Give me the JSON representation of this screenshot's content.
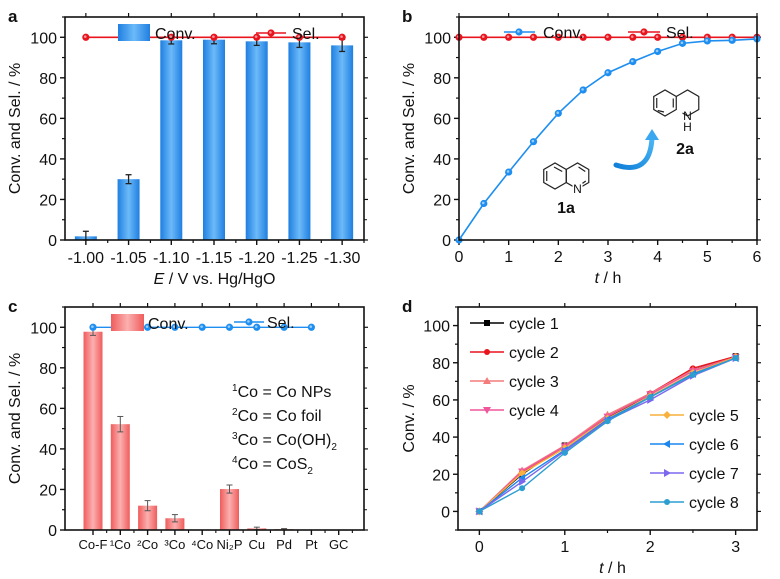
{
  "chart_data": [
    {
      "panel": "a",
      "type": "bar",
      "title": "",
      "xlabel_italic": "E",
      "xlabel_rest": " / V vs. Hg/HgO",
      "ylabel": "Conv. and Sel. / %",
      "ylim": [
        0,
        110
      ],
      "yticks": [
        0,
        20,
        40,
        60,
        80,
        100
      ],
      "categories": [
        "-1.00",
        "-1.05",
        "-1.10",
        "-1.15",
        "-1.20",
        "-1.25",
        "-1.30"
      ],
      "series": [
        {
          "name": "Conv.",
          "kind": "bar",
          "color": "#2f8de4",
          "values": [
            1.8,
            30,
            98.5,
            98.8,
            98,
            97.5,
            96
          ],
          "errors": [
            2.5,
            2.2,
            1.8,
            2,
            2,
            2.5,
            3
          ]
        },
        {
          "name": "Sel.",
          "kind": "line",
          "color": "#e8141e",
          "values": [
            100,
            100,
            100,
            100,
            100,
            100,
            100
          ]
        }
      ],
      "legend": "top"
    },
    {
      "panel": "b",
      "type": "line",
      "xlabel_italic": "t",
      "xlabel_rest": " / h",
      "ylabel": "Conv. and Sel. / %",
      "xlim": [
        0,
        6
      ],
      "ylim": [
        0,
        110
      ],
      "xticks": [
        0,
        1,
        2,
        3,
        4,
        5,
        6
      ],
      "yticks": [
        0,
        20,
        40,
        60,
        80,
        100
      ],
      "x": [
        0,
        0.5,
        1,
        1.5,
        2,
        2.5,
        3,
        3.5,
        4,
        4.5,
        5,
        5.5,
        6
      ],
      "series": [
        {
          "name": "Conv.",
          "color": "#1e8ef0",
          "values": [
            0,
            18,
            33.5,
            48.5,
            62.5,
            74,
            82.5,
            88,
            93,
            97,
            98.2,
            98.5,
            99.2
          ]
        },
        {
          "name": "Sel.",
          "color": "#e8141e",
          "values": [
            100,
            100,
            100,
            100,
            100,
            100,
            100,
            100,
            100,
            100,
            100,
            100,
            100
          ]
        }
      ],
      "annotations": [
        "1a",
        "2a",
        "N",
        "N",
        "H"
      ],
      "legend": "top"
    },
    {
      "panel": "c",
      "type": "bar",
      "xlabel": "",
      "ylabel": "Conv. and Sel. / %",
      "ylim": [
        0,
        110
      ],
      "yticks": [
        0,
        20,
        40,
        60,
        80,
        100
      ],
      "categories": [
        "Co-F",
        "¹Co",
        "²Co",
        "³Co",
        "⁴Co",
        "Ni₂P",
        "Cu",
        "Pd",
        "Pt",
        "GC"
      ],
      "series": [
        {
          "name": "Conv.",
          "kind": "bar",
          "color": "#f26d6d",
          "values": [
            97.8,
            52.2,
            12,
            5.8,
            0.2,
            20.2,
            0.8,
            0.4,
            0.1,
            0
          ],
          "errors": [
            1.8,
            3.8,
            2.5,
            1.8,
            0,
            2,
            0.6,
            0.3,
            0,
            0
          ]
        },
        {
          "name": "Sel.",
          "kind": "line",
          "color": "#1e8ef0",
          "values": [
            100,
            100,
            100,
            100,
            100,
            100,
            100,
            100,
            100,
            null
          ]
        }
      ],
      "notes": [
        {
          "sup": "1",
          "text": "Co = Co NPs"
        },
        {
          "sup": "2",
          "text": "Co = Co foil"
        },
        {
          "sup": "3",
          "text": "Co = Co(OH)",
          "sub": "2"
        },
        {
          "sup": "4",
          "text": "Co = CoS",
          "sub": "2"
        }
      ],
      "legend": "top"
    },
    {
      "panel": "d",
      "type": "line",
      "xlabel_italic": "t",
      "xlabel_rest": " / h",
      "ylabel": "Conv. / %",
      "xlim": [
        -0.25,
        3.25
      ],
      "ylim": [
        -10,
        110
      ],
      "xticks": [
        0,
        1,
        2,
        3
      ],
      "yticks": [
        0,
        20,
        40,
        60,
        80,
        100
      ],
      "x": [
        0,
        0.5,
        1,
        1.5,
        2,
        2.5,
        3
      ],
      "series": [
        {
          "name": "cycle 1",
          "color": "#000000",
          "marker": "square",
          "values": [
            0,
            20,
            35.5,
            50.5,
            63,
            76,
            83.5
          ]
        },
        {
          "name": "cycle 2",
          "color": "#e8141e",
          "marker": "circle",
          "values": [
            0,
            21,
            35,
            51,
            63.5,
            77,
            83.5
          ]
        },
        {
          "name": "cycle 3",
          "color": "#f47c7c",
          "marker": "triangle-up",
          "values": [
            0,
            22,
            35.5,
            52,
            63.5,
            76,
            83
          ]
        },
        {
          "name": "cycle 4",
          "color": "#f0569a",
          "marker": "triangle-down",
          "values": [
            0,
            21.5,
            35,
            51,
            63,
            75.5,
            83
          ]
        },
        {
          "name": "cycle 5",
          "color": "#f8b13c",
          "marker": "diamond",
          "values": [
            0,
            20.5,
            34,
            50,
            62,
            74.5,
            83
          ]
        },
        {
          "name": "cycle 6",
          "color": "#1a86ee",
          "marker": "triangle-left",
          "values": [
            0,
            18,
            33,
            49.5,
            61.5,
            74,
            82.5
          ]
        },
        {
          "name": "cycle 7",
          "color": "#7b68ee",
          "marker": "triangle-right",
          "values": [
            0,
            16,
            32.5,
            49,
            60,
            73,
            82.5
          ]
        },
        {
          "name": "cycle 8",
          "color": "#2c9ed0",
          "marker": "circle",
          "values": [
            0,
            12.5,
            31.5,
            48.5,
            61.5,
            73.5,
            82.5
          ]
        }
      ],
      "legend": "left and right columns inside"
    }
  ]
}
